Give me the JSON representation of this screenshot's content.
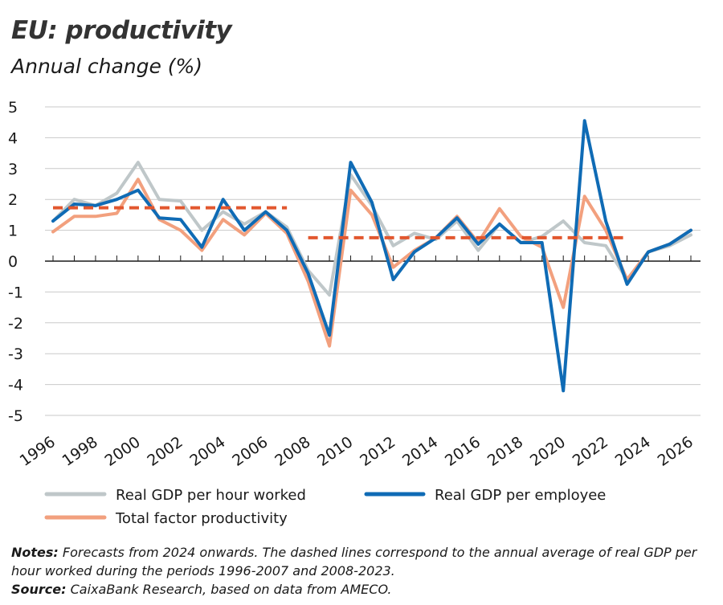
{
  "title": "EU: productivity",
  "subtitle": "Annual change (%)",
  "notes": {
    "label": "Notes:",
    "text": "Forecasts from 2024 onwards. The dashed lines correspond to the annual average of real GDP per hour worked during the periods 1996-2007 and 2008-2023."
  },
  "source": {
    "label": "Source:",
    "text": "CaixaBank Research, based on data from AMECO."
  },
  "colors": {
    "hour": "#bfc7c9",
    "employee": "#0f6bb5",
    "tfp": "#f2a07e",
    "average": "#e2572e",
    "grid": "#c9c9c9",
    "axis": "#1a1a1a"
  },
  "chart_data": {
    "type": "line",
    "x": [
      1996,
      1997,
      1998,
      1999,
      2000,
      2001,
      2002,
      2003,
      2004,
      2005,
      2006,
      2007,
      2008,
      2009,
      2010,
      2011,
      2012,
      2013,
      2014,
      2015,
      2016,
      2017,
      2018,
      2019,
      2020,
      2021,
      2022,
      2023,
      2024,
      2025,
      2026
    ],
    "x_tick_labels": [
      "1996",
      "1998",
      "2000",
      "2002",
      "2004",
      "2006",
      "2008",
      "2010",
      "2012",
      "2014",
      "2016",
      "2018",
      "2020",
      "2022",
      "2024",
      "2026"
    ],
    "ylim": [
      -5,
      5
    ],
    "y_ticks": [
      5,
      4,
      3,
      2,
      1,
      0,
      -1,
      -2,
      -3,
      -4,
      -5
    ],
    "y_tick_labels": [
      "5",
      "4",
      "3",
      "2",
      "1",
      "0",
      "-1",
      "-2",
      "-3",
      "-4",
      "-5"
    ],
    "grid": true,
    "series": [
      {
        "key": "hour",
        "name": "Real GDP per hour worked",
        "values": [
          1.3,
          2.0,
          1.8,
          2.2,
          3.2,
          2.0,
          1.95,
          1.0,
          1.6,
          1.2,
          1.6,
          1.1,
          -0.3,
          -1.1,
          2.8,
          1.8,
          0.5,
          0.9,
          0.7,
          1.3,
          0.35,
          1.2,
          0.6,
          0.8,
          1.3,
          0.6,
          0.5,
          -0.6,
          0.3,
          0.5,
          0.85
        ]
      },
      {
        "key": "employee",
        "name": "Real GDP per employee",
        "values": [
          1.3,
          1.85,
          1.8,
          2.0,
          2.3,
          1.4,
          1.35,
          0.45,
          2.0,
          1.0,
          1.6,
          1.0,
          -0.4,
          -2.4,
          3.2,
          1.9,
          -0.6,
          0.3,
          0.75,
          1.4,
          0.55,
          1.2,
          0.6,
          0.6,
          -4.2,
          4.55,
          1.3,
          -0.75,
          0.3,
          0.55,
          1.0
        ]
      },
      {
        "key": "tfp",
        "name": "Total factor productivity",
        "values": [
          0.95,
          1.45,
          1.45,
          1.55,
          2.65,
          1.35,
          1.0,
          0.35,
          1.35,
          0.85,
          1.55,
          0.9,
          -0.65,
          -2.75,
          2.3,
          1.5,
          -0.2,
          0.35,
          0.75,
          1.45,
          0.6,
          1.7,
          0.8,
          0.45,
          -1.5,
          2.1,
          1.0,
          -0.6,
          0.3,
          0.55,
          1.0
        ]
      }
    ],
    "averages": [
      {
        "x_start": 1996,
        "x_end": 2007,
        "value": 1.73
      },
      {
        "x_start": 2008,
        "x_end": 2023,
        "value": 0.76
      }
    ],
    "legend_position": "bottom"
  }
}
